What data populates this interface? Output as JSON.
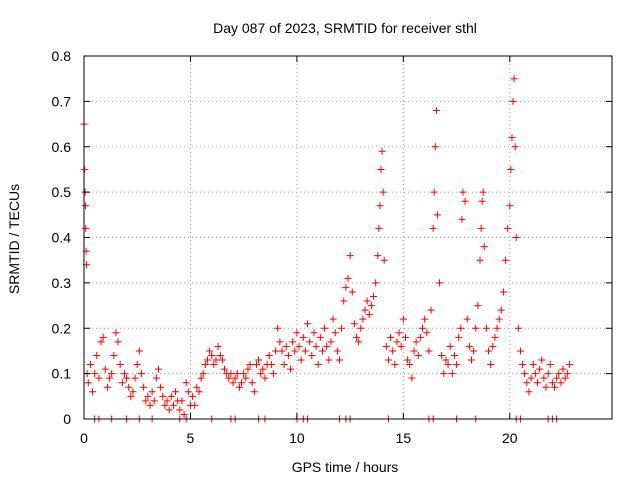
{
  "chart_data": {
    "type": "scatter",
    "title": "Day 087 of 2023, SRMTID for receiver sthl",
    "xlabel": "GPS time / hours",
    "ylabel": "SRMTID / TECUs",
    "xlim": [
      0,
      24.8
    ],
    "ylim": [
      0,
      0.8
    ],
    "xticks": [
      0,
      5,
      10,
      15,
      20
    ],
    "yticks": [
      0,
      0.1,
      0.2,
      0.3,
      0.4,
      0.5,
      0.6,
      0.7,
      0.8
    ],
    "xtick_labels": [
      "0",
      "5",
      "10",
      "15",
      "20"
    ],
    "ytick_labels": [
      "0",
      "0.1",
      "0.2",
      "0.3",
      "0.4",
      "0.5",
      "0.6",
      "0.7",
      "0.8"
    ],
    "grid": true,
    "marker": "+",
    "color": "#ff0000",
    "series": [
      {
        "name": "SRMTID",
        "points": [
          [
            0.0,
            0.65
          ],
          [
            0.03,
            0.55
          ],
          [
            0.05,
            0.5
          ],
          [
            0.07,
            0.47
          ],
          [
            0.08,
            0.42
          ],
          [
            0.1,
            0.37
          ],
          [
            0.12,
            0.34
          ],
          [
            0.15,
            0.1
          ],
          [
            0.2,
            0.08
          ],
          [
            0.3,
            0.12
          ],
          [
            0.4,
            0.06
          ],
          [
            0.5,
            0.1
          ],
          [
            0.6,
            0.14
          ],
          [
            0.7,
            0.09
          ],
          [
            0.8,
            0.17
          ],
          [
            0.9,
            0.18
          ],
          [
            1.0,
            0.11
          ],
          [
            1.1,
            0.07
          ],
          [
            1.2,
            0.09
          ],
          [
            1.3,
            0.1
          ],
          [
            1.4,
            0.14
          ],
          [
            1.5,
            0.19
          ],
          [
            1.6,
            0.17
          ],
          [
            1.7,
            0.12
          ],
          [
            1.8,
            0.08
          ],
          [
            1.9,
            0.1
          ],
          [
            2.0,
            0.09
          ],
          [
            2.1,
            0.07
          ],
          [
            2.2,
            0.05
          ],
          [
            2.3,
            0.06
          ],
          [
            2.4,
            0.09
          ],
          [
            2.5,
            0.12
          ],
          [
            2.6,
            0.15
          ],
          [
            2.7,
            0.1
          ],
          [
            2.8,
            0.07
          ],
          [
            2.9,
            0.04
          ],
          [
            3.0,
            0.05
          ],
          [
            3.1,
            0.03
          ],
          [
            3.2,
            0.06
          ],
          [
            3.3,
            0.04
          ],
          [
            3.4,
            0.09
          ],
          [
            3.5,
            0.11
          ],
          [
            3.6,
            0.07
          ],
          [
            3.7,
            0.05
          ],
          [
            3.8,
            0.03
          ],
          [
            3.9,
            0.04
          ],
          [
            4.0,
            0.02
          ],
          [
            4.1,
            0.05
          ],
          [
            4.2,
            0.03
          ],
          [
            4.3,
            0.06
          ],
          [
            4.4,
            0.04
          ],
          [
            4.5,
            0.02
          ],
          [
            4.6,
            0.04
          ],
          [
            4.7,
            0.01
          ],
          [
            4.8,
            0.08
          ],
          [
            4.9,
            0.06
          ],
          [
            5.0,
            0.03
          ],
          [
            5.1,
            0.05
          ],
          [
            5.2,
            0.03
          ],
          [
            5.3,
            0.07
          ],
          [
            5.4,
            0.06
          ],
          [
            5.5,
            0.09
          ],
          [
            5.6,
            0.1
          ],
          [
            5.7,
            0.12
          ],
          [
            5.8,
            0.13
          ],
          [
            5.9,
            0.15
          ],
          [
            6.0,
            0.14
          ],
          [
            6.1,
            0.12
          ],
          [
            6.2,
            0.13
          ],
          [
            6.3,
            0.16
          ],
          [
            6.4,
            0.14
          ],
          [
            6.5,
            0.13
          ],
          [
            6.6,
            0.11
          ],
          [
            6.7,
            0.1
          ],
          [
            6.8,
            0.09
          ],
          [
            6.9,
            0.1
          ],
          [
            7.0,
            0.08
          ],
          [
            7.1,
            0.09
          ],
          [
            7.2,
            0.1
          ],
          [
            7.3,
            0.07
          ],
          [
            7.4,
            0.08
          ],
          [
            7.5,
            0.1
          ],
          [
            7.6,
            0.09
          ],
          [
            7.7,
            0.11
          ],
          [
            7.8,
            0.12
          ],
          [
            7.9,
            0.08
          ],
          [
            8.0,
            0.06
          ],
          [
            8.1,
            0.12
          ],
          [
            8.2,
            0.13
          ],
          [
            8.3,
            0.1
          ],
          [
            8.4,
            0.11
          ],
          [
            8.5,
            0.09
          ],
          [
            8.6,
            0.12
          ],
          [
            8.7,
            0.14
          ],
          [
            8.8,
            0.12
          ],
          [
            8.9,
            0.1
          ],
          [
            9.0,
            0.15
          ],
          [
            9.1,
            0.2
          ],
          [
            9.2,
            0.17
          ],
          [
            9.3,
            0.15
          ],
          [
            9.4,
            0.12
          ],
          [
            9.5,
            0.16
          ],
          [
            9.6,
            0.14
          ],
          [
            9.7,
            0.11
          ],
          [
            9.8,
            0.17
          ],
          [
            9.9,
            0.15
          ],
          [
            10.0,
            0.19
          ],
          [
            10.1,
            0.16
          ],
          [
            10.2,
            0.13
          ],
          [
            10.3,
            0.18
          ],
          [
            10.4,
            0.15
          ],
          [
            10.5,
            0.21
          ],
          [
            10.6,
            0.17
          ],
          [
            10.7,
            0.14
          ],
          [
            10.8,
            0.19
          ],
          [
            10.9,
            0.16
          ],
          [
            11.0,
            0.12
          ],
          [
            11.1,
            0.18
          ],
          [
            11.2,
            0.15
          ],
          [
            11.3,
            0.2
          ],
          [
            11.4,
            0.16
          ],
          [
            11.5,
            0.13
          ],
          [
            11.6,
            0.17
          ],
          [
            11.7,
            0.22
          ],
          [
            11.8,
            0.19
          ],
          [
            11.9,
            0.15
          ],
          [
            12.0,
            0.13
          ],
          [
            12.1,
            0.2
          ],
          [
            12.2,
            0.26
          ],
          [
            12.3,
            0.29
          ],
          [
            12.4,
            0.31
          ],
          [
            12.5,
            0.36
          ],
          [
            12.6,
            0.28
          ],
          [
            12.7,
            0.21
          ],
          [
            12.8,
            0.18
          ],
          [
            12.9,
            0.17
          ],
          [
            13.0,
            0.2
          ],
          [
            13.1,
            0.22
          ],
          [
            13.2,
            0.24
          ],
          [
            13.3,
            0.26
          ],
          [
            13.4,
            0.23
          ],
          [
            13.5,
            0.25
          ],
          [
            13.6,
            0.27
          ],
          [
            13.7,
            0.3
          ],
          [
            13.8,
            0.36
          ],
          [
            13.85,
            0.42
          ],
          [
            13.9,
            0.47
          ],
          [
            13.95,
            0.55
          ],
          [
            14.0,
            0.59
          ],
          [
            14.05,
            0.5
          ],
          [
            14.1,
            0.35
          ],
          [
            14.2,
            0.16
          ],
          [
            14.3,
            0.13
          ],
          [
            14.4,
            0.18
          ],
          [
            14.5,
            0.15
          ],
          [
            14.6,
            0.12
          ],
          [
            14.7,
            0.17
          ],
          [
            14.8,
            0.19
          ],
          [
            14.9,
            0.16
          ],
          [
            15.0,
            0.22
          ],
          [
            15.1,
            0.18
          ],
          [
            15.2,
            0.13
          ],
          [
            15.3,
            0.12
          ],
          [
            15.4,
            0.09
          ],
          [
            15.5,
            0.15
          ],
          [
            15.6,
            0.17
          ],
          [
            15.7,
            0.14
          ],
          [
            15.8,
            0.18
          ],
          [
            15.9,
            0.2
          ],
          [
            16.0,
            0.22
          ],
          [
            16.1,
            0.19
          ],
          [
            16.2,
            0.15
          ],
          [
            16.3,
            0.24
          ],
          [
            16.4,
            0.42
          ],
          [
            16.45,
            0.5
          ],
          [
            16.5,
            0.6
          ],
          [
            16.55,
            0.68
          ],
          [
            16.6,
            0.45
          ],
          [
            16.7,
            0.3
          ],
          [
            16.8,
            0.14
          ],
          [
            16.9,
            0.1
          ],
          [
            17.0,
            0.13
          ],
          [
            17.1,
            0.12
          ],
          [
            17.2,
            0.16
          ],
          [
            17.3,
            0.1
          ],
          [
            17.4,
            0.14
          ],
          [
            17.5,
            0.12
          ],
          [
            17.6,
            0.18
          ],
          [
            17.7,
            0.2
          ],
          [
            17.75,
            0.44
          ],
          [
            17.8,
            0.5
          ],
          [
            17.9,
            0.48
          ],
          [
            18.0,
            0.22
          ],
          [
            18.1,
            0.16
          ],
          [
            18.2,
            0.13
          ],
          [
            18.3,
            0.15
          ],
          [
            18.4,
            0.2
          ],
          [
            18.5,
            0.25
          ],
          [
            18.6,
            0.35
          ],
          [
            18.65,
            0.42
          ],
          [
            18.7,
            0.48
          ],
          [
            18.75,
            0.5
          ],
          [
            18.8,
            0.38
          ],
          [
            18.9,
            0.2
          ],
          [
            19.0,
            0.15
          ],
          [
            19.1,
            0.12
          ],
          [
            19.2,
            0.16
          ],
          [
            19.3,
            0.18
          ],
          [
            19.4,
            0.2
          ],
          [
            19.5,
            0.22
          ],
          [
            19.6,
            0.24
          ],
          [
            19.7,
            0.28
          ],
          [
            19.8,
            0.35
          ],
          [
            19.9,
            0.42
          ],
          [
            20.0,
            0.47
          ],
          [
            20.05,
            0.55
          ],
          [
            20.1,
            0.62
          ],
          [
            20.15,
            0.7
          ],
          [
            20.2,
            0.75
          ],
          [
            20.25,
            0.6
          ],
          [
            20.3,
            0.4
          ],
          [
            20.4,
            0.2
          ],
          [
            20.5,
            0.15
          ],
          [
            20.6,
            0.12
          ],
          [
            20.7,
            0.1
          ],
          [
            20.8,
            0.08
          ],
          [
            20.9,
            0.06
          ],
          [
            21.0,
            0.09
          ],
          [
            21.1,
            0.12
          ],
          [
            21.2,
            0.1
          ],
          [
            21.3,
            0.08
          ],
          [
            21.4,
            0.11
          ],
          [
            21.5,
            0.13
          ],
          [
            21.6,
            0.09
          ],
          [
            21.7,
            0.07
          ],
          [
            21.8,
            0.1
          ],
          [
            21.9,
            0.12
          ],
          [
            22.0,
            0.08
          ],
          [
            22.1,
            0.07
          ],
          [
            22.2,
            0.09
          ],
          [
            22.3,
            0.1
          ],
          [
            22.4,
            0.08
          ],
          [
            22.5,
            0.11
          ],
          [
            22.6,
            0.09
          ],
          [
            22.7,
            0.1
          ],
          [
            22.8,
            0.12
          ],
          [
            0.5,
            0.0
          ],
          [
            0.7,
            0.0
          ],
          [
            1.3,
            0.0
          ],
          [
            2.0,
            0.0
          ],
          [
            2.6,
            0.0
          ],
          [
            3.2,
            0.0
          ],
          [
            4.5,
            0.0
          ],
          [
            4.8,
            0.0
          ],
          [
            6.0,
            0.0
          ],
          [
            6.9,
            0.0
          ],
          [
            7.1,
            0.0
          ],
          [
            8.2,
            0.0
          ],
          [
            8.5,
            0.0
          ],
          [
            10.0,
            0.0
          ],
          [
            10.3,
            0.0
          ],
          [
            10.5,
            0.0
          ],
          [
            12.0,
            0.0
          ],
          [
            12.3,
            0.0
          ],
          [
            12.5,
            0.0
          ],
          [
            14.3,
            0.0
          ],
          [
            16.2,
            0.0
          ],
          [
            16.4,
            0.0
          ],
          [
            17.5,
            0.0
          ],
          [
            18.4,
            0.0
          ],
          [
            20.3,
            0.0
          ],
          [
            20.5,
            0.0
          ],
          [
            21.8,
            0.0
          ],
          [
            22.0,
            0.0
          ],
          [
            22.2,
            0.0
          ]
        ]
      }
    ]
  }
}
